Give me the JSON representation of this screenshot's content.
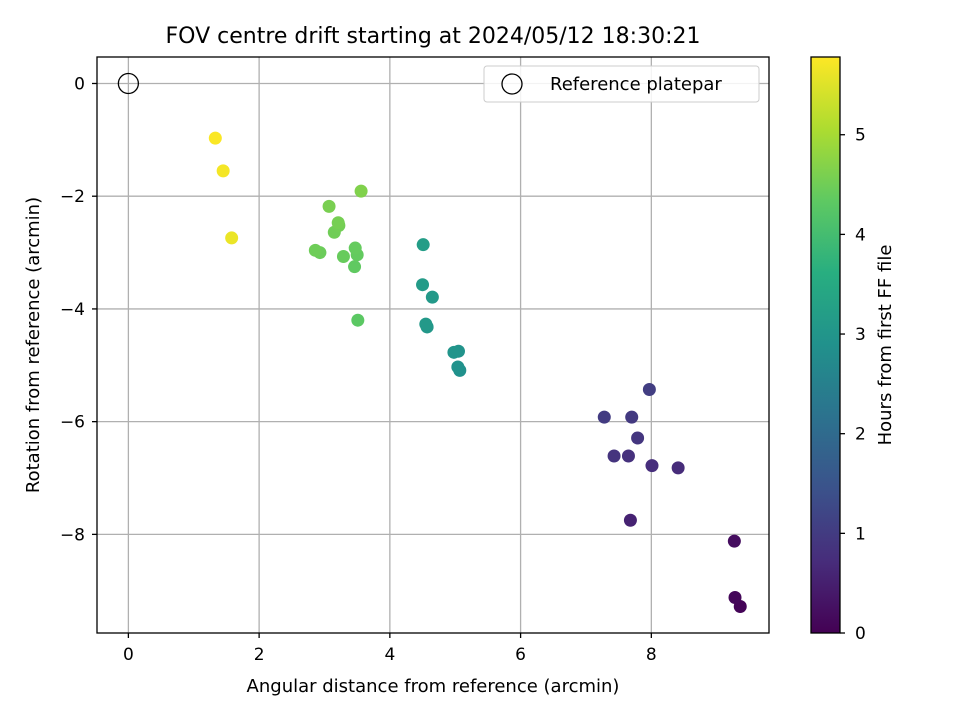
{
  "chart_data": {
    "type": "scatter",
    "title": "FOV centre drift starting at 2024/05/12 18:30:21",
    "xlabel": "Angular distance from reference (arcmin)",
    "ylabel": "Rotation from reference (arcmin)",
    "xlim": [
      -0.48,
      9.8
    ],
    "ylim": [
      -9.75,
      0.47
    ],
    "xticks": [
      0,
      2,
      4,
      6,
      8
    ],
    "yticks": [
      0,
      -2,
      -4,
      -6,
      -8
    ],
    "grid": true,
    "legend": {
      "position": "top-right",
      "entries": [
        "Reference platepar"
      ]
    },
    "reference_point": {
      "x": 0,
      "y": 0
    },
    "colorbar": {
      "label": "Hours from first FF file",
      "range": [
        0,
        5.78
      ],
      "ticks": [
        0,
        1,
        2,
        3,
        4,
        5
      ],
      "colormap": "viridis"
    },
    "points": [
      {
        "x": 9.36,
        "y": -9.28,
        "c": 0.05
      },
      {
        "x": 9.28,
        "y": -9.12,
        "c": 0.1
      },
      {
        "x": 9.27,
        "y": -8.12,
        "c": 0.2
      },
      {
        "x": 7.68,
        "y": -7.75,
        "c": 0.55
      },
      {
        "x": 8.41,
        "y": -6.82,
        "c": 0.7
      },
      {
        "x": 8.01,
        "y": -6.78,
        "c": 0.75
      },
      {
        "x": 7.65,
        "y": -6.61,
        "c": 0.8
      },
      {
        "x": 7.43,
        "y": -6.61,
        "c": 0.85
      },
      {
        "x": 7.79,
        "y": -6.29,
        "c": 0.9
      },
      {
        "x": 7.7,
        "y": -5.92,
        "c": 0.95
      },
      {
        "x": 7.28,
        "y": -5.92,
        "c": 1.0
      },
      {
        "x": 7.97,
        "y": -5.43,
        "c": 1.05
      },
      {
        "x": 5.07,
        "y": -5.09,
        "c": 2.9
      },
      {
        "x": 5.04,
        "y": -5.03,
        "c": 2.92
      },
      {
        "x": 5.05,
        "y": -4.75,
        "c": 2.95
      },
      {
        "x": 4.98,
        "y": -4.77,
        "c": 2.98
      },
      {
        "x": 4.57,
        "y": -4.32,
        "c": 3.05
      },
      {
        "x": 4.55,
        "y": -4.27,
        "c": 3.08
      },
      {
        "x": 4.65,
        "y": -3.79,
        "c": 3.1
      },
      {
        "x": 4.5,
        "y": -3.57,
        "c": 3.15
      },
      {
        "x": 4.51,
        "y": -2.86,
        "c": 3.2
      },
      {
        "x": 3.51,
        "y": -4.2,
        "c": 4.3
      },
      {
        "x": 3.46,
        "y": -3.25,
        "c": 4.35
      },
      {
        "x": 3.5,
        "y": -3.04,
        "c": 4.38
      },
      {
        "x": 3.47,
        "y": -2.92,
        "c": 4.4
      },
      {
        "x": 3.29,
        "y": -3.07,
        "c": 4.42
      },
      {
        "x": 2.93,
        "y": -3.0,
        "c": 4.45
      },
      {
        "x": 2.86,
        "y": -2.96,
        "c": 4.48
      },
      {
        "x": 3.15,
        "y": -2.64,
        "c": 4.5
      },
      {
        "x": 3.22,
        "y": -2.52,
        "c": 4.52
      },
      {
        "x": 3.21,
        "y": -2.47,
        "c": 4.55
      },
      {
        "x": 3.07,
        "y": -2.18,
        "c": 4.58
      },
      {
        "x": 3.56,
        "y": -1.91,
        "c": 4.65
      },
      {
        "x": 1.58,
        "y": -2.74,
        "c": 5.62
      },
      {
        "x": 1.45,
        "y": -1.55,
        "c": 5.7
      },
      {
        "x": 1.33,
        "y": -0.97,
        "c": 5.75
      }
    ]
  }
}
